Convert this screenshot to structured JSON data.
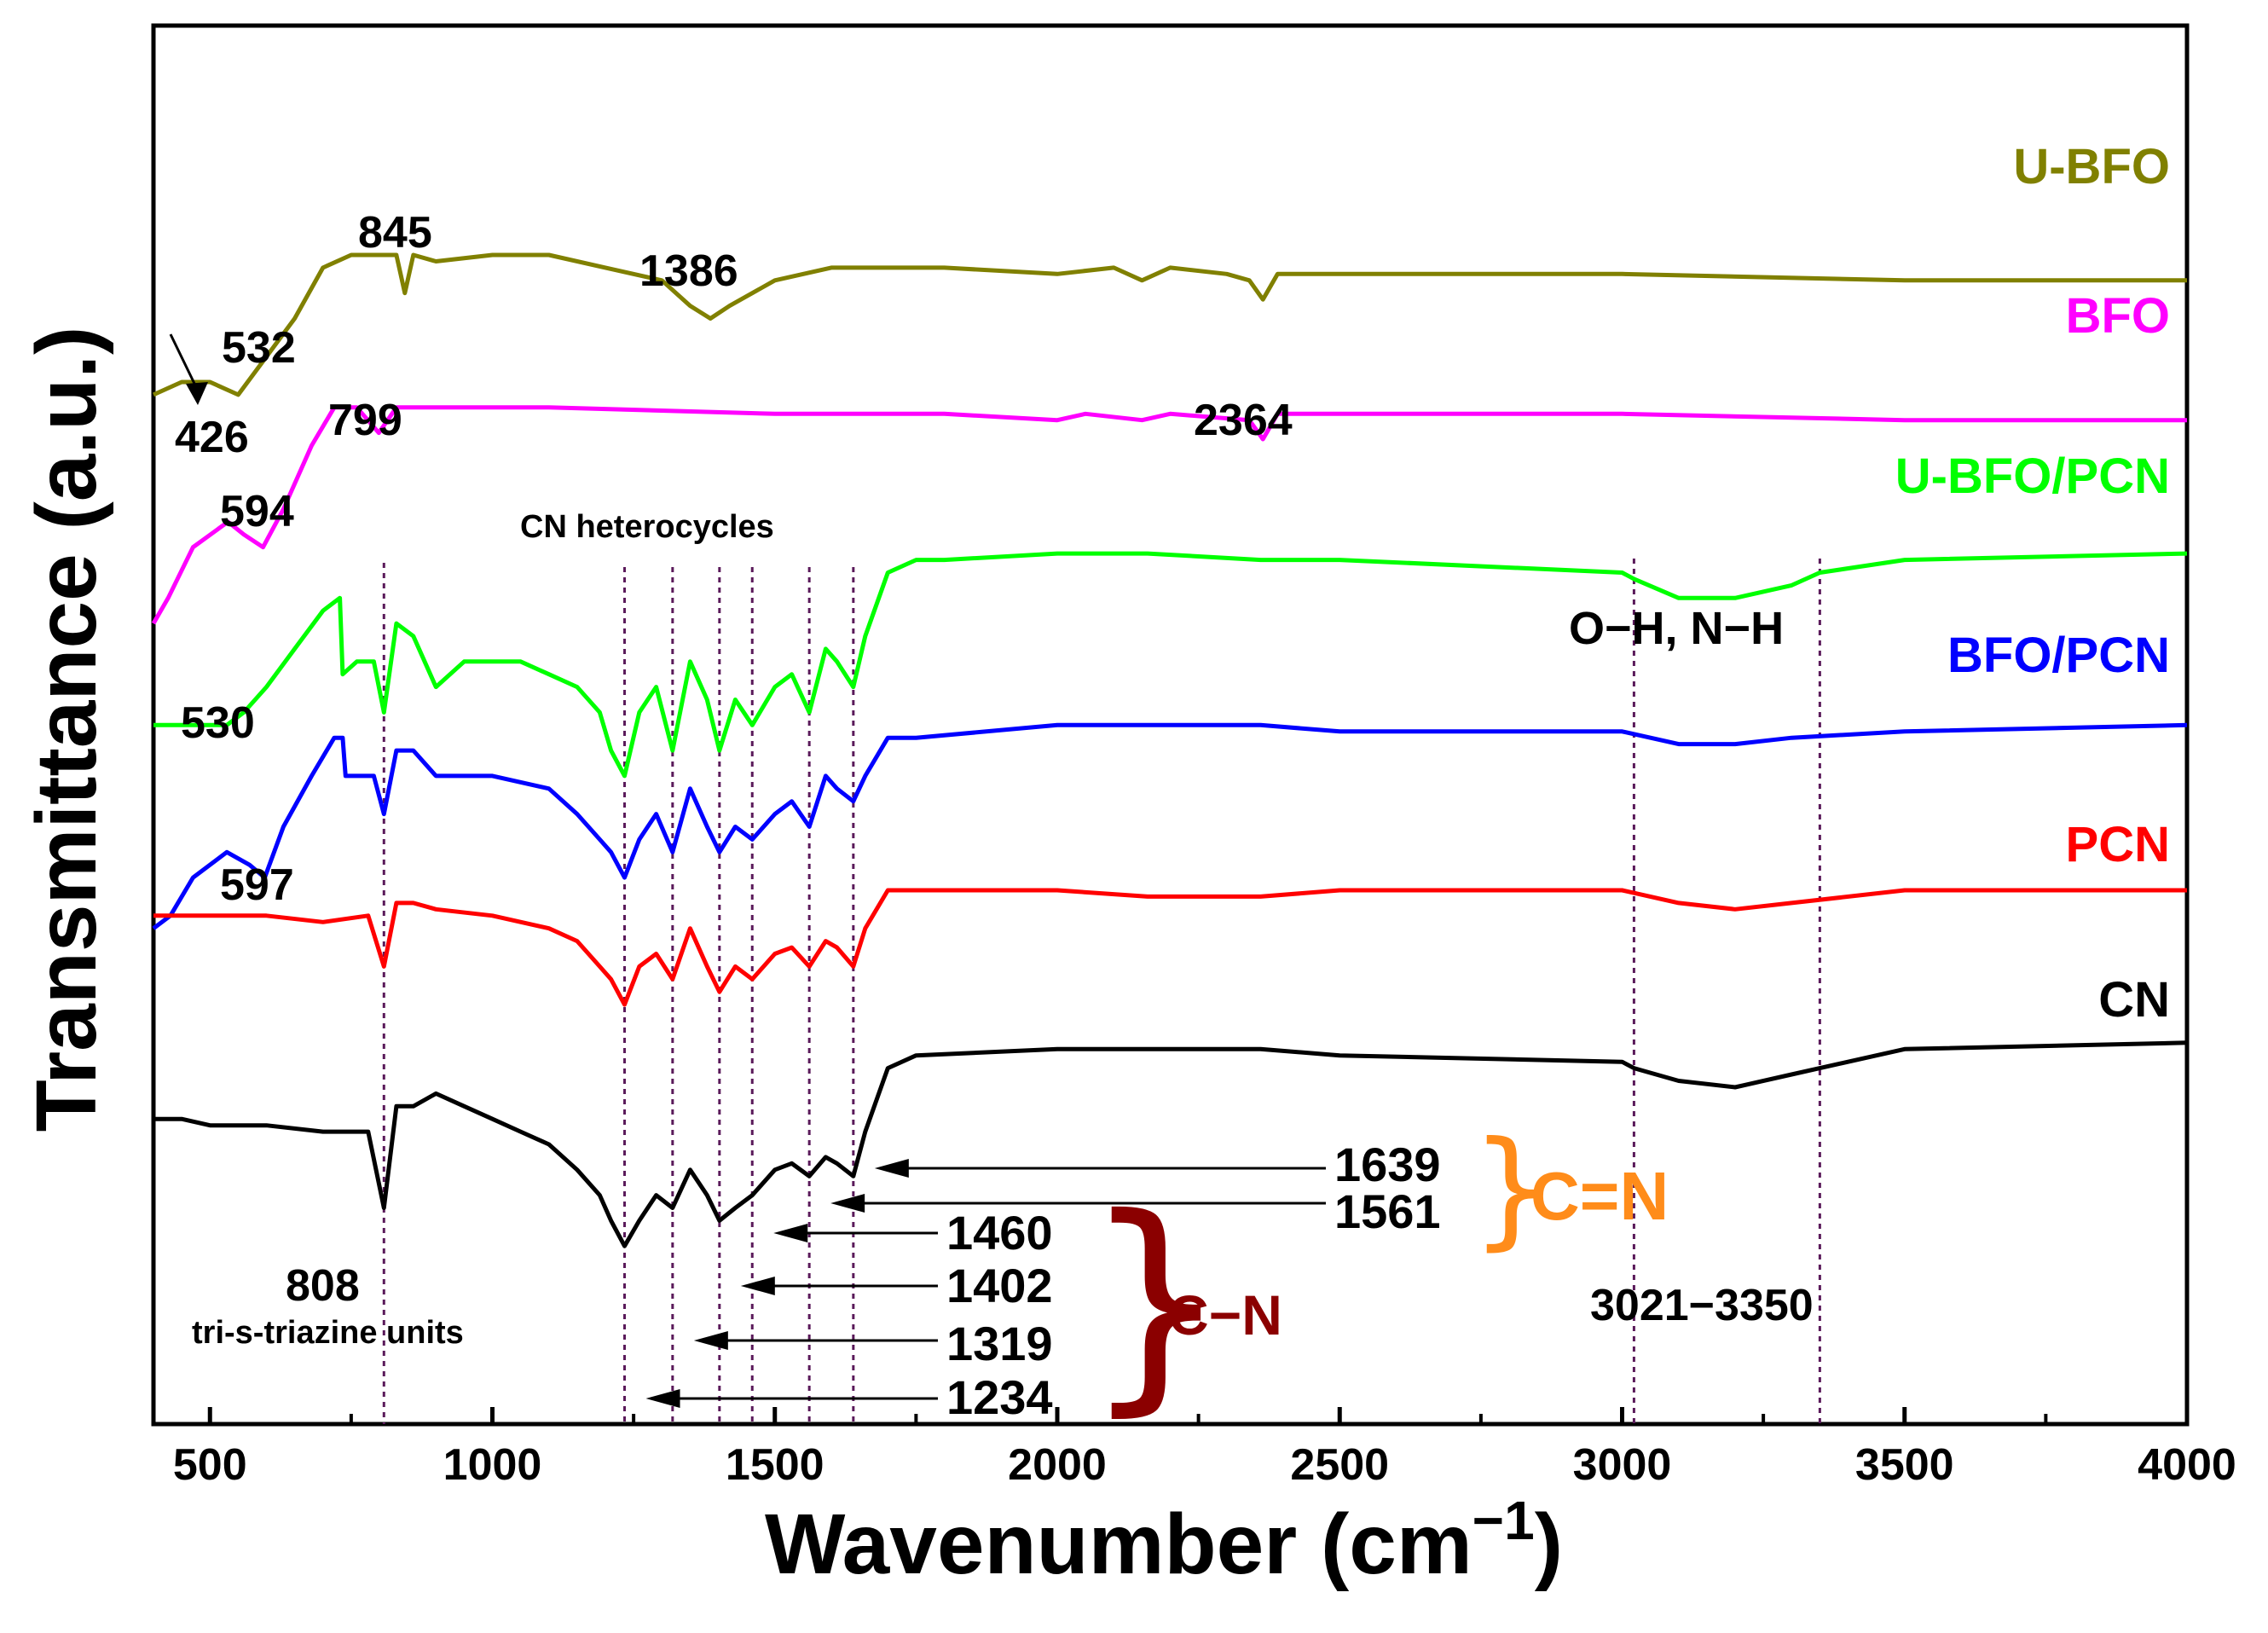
{
  "chart_data": {
    "type": "line",
    "title": "",
    "xlabel": "Wavenumber (cm",
    "xlabel_sup": "−1",
    "xlabel_close": ")",
    "ylabel": "Transmittance (a.u.)",
    "xlim": [
      400,
      4000
    ],
    "ylim": [
      0,
      100
    ],
    "x_ticks": [
      500,
      1000,
      1500,
      2000,
      2500,
      3000,
      3500,
      4000
    ],
    "x_tick_labels": [
      "500",
      "1000",
      "1500",
      "2000",
      "2500",
      "3000",
      "3500",
      "4000"
    ],
    "series": [
      {
        "name": "U-BFO",
        "color": "#808000",
        "label_pos": "right",
        "points": [
          [
            400,
            79
          ],
          [
            450,
            80
          ],
          [
            500,
            80
          ],
          [
            550,
            79
          ],
          [
            600,
            82
          ],
          [
            650,
            85
          ],
          [
            700,
            89
          ],
          [
            750,
            90
          ],
          [
            800,
            90
          ],
          [
            830,
            90
          ],
          [
            845,
            87
          ],
          [
            860,
            90
          ],
          [
            900,
            89.5
          ],
          [
            1000,
            90
          ],
          [
            1100,
            90
          ],
          [
            1200,
            89
          ],
          [
            1300,
            88
          ],
          [
            1350,
            86
          ],
          [
            1386,
            85
          ],
          [
            1420,
            86
          ],
          [
            1500,
            88
          ],
          [
            1600,
            89
          ],
          [
            1800,
            89
          ],
          [
            2000,
            88.5
          ],
          [
            2100,
            89
          ],
          [
            2150,
            88
          ],
          [
            2200,
            89
          ],
          [
            2300,
            88.5
          ],
          [
            2340,
            88
          ],
          [
            2364,
            86.5
          ],
          [
            2390,
            88.5
          ],
          [
            2500,
            88.5
          ],
          [
            3000,
            88.5
          ],
          [
            3500,
            88
          ],
          [
            4000,
            88
          ]
        ]
      },
      {
        "name": "BFO",
        "color": "#ff00ff",
        "label_pos": "right",
        "points": [
          [
            400,
            61
          ],
          [
            426,
            63
          ],
          [
            470,
            67
          ],
          [
            532,
            69
          ],
          [
            560,
            68
          ],
          [
            594,
            67
          ],
          [
            630,
            70
          ],
          [
            680,
            75
          ],
          [
            720,
            78
          ],
          [
            760,
            78
          ],
          [
            799,
            76
          ],
          [
            830,
            78
          ],
          [
            900,
            78
          ],
          [
            1000,
            78
          ],
          [
            1100,
            78
          ],
          [
            1500,
            77.5
          ],
          [
            1800,
            77.5
          ],
          [
            2000,
            77
          ],
          [
            2050,
            77.5
          ],
          [
            2150,
            77
          ],
          [
            2200,
            77.5
          ],
          [
            2340,
            77
          ],
          [
            2364,
            75.5
          ],
          [
            2390,
            77.5
          ],
          [
            2500,
            77.5
          ],
          [
            3000,
            77.5
          ],
          [
            3500,
            77
          ],
          [
            4000,
            77
          ]
        ]
      },
      {
        "name": "U-BFO/PCN",
        "color": "#00ff00",
        "label_pos": "right",
        "points": [
          [
            400,
            53
          ],
          [
            450,
            53
          ],
          [
            530,
            53
          ],
          [
            560,
            54
          ],
          [
            600,
            56
          ],
          [
            650,
            59
          ],
          [
            700,
            62
          ],
          [
            730,
            63
          ],
          [
            735,
            57
          ],
          [
            760,
            58
          ],
          [
            790,
            58
          ],
          [
            808,
            54
          ],
          [
            830,
            61
          ],
          [
            860,
            60
          ],
          [
            900,
            56
          ],
          [
            950,
            58
          ],
          [
            1000,
            58
          ],
          [
            1050,
            58
          ],
          [
            1100,
            57
          ],
          [
            1150,
            56
          ],
          [
            1190,
            54
          ],
          [
            1210,
            51
          ],
          [
            1234,
            49
          ],
          [
            1260,
            54
          ],
          [
            1290,
            56
          ],
          [
            1319,
            51
          ],
          [
            1350,
            58
          ],
          [
            1380,
            55
          ],
          [
            1402,
            51
          ],
          [
            1430,
            55
          ],
          [
            1460,
            53
          ],
          [
            1500,
            56
          ],
          [
            1530,
            57
          ],
          [
            1561,
            54
          ],
          [
            1590,
            59
          ],
          [
            1610,
            58
          ],
          [
            1639,
            56
          ],
          [
            1660,
            60
          ],
          [
            1700,
            65
          ],
          [
            1750,
            66
          ],
          [
            1800,
            66
          ],
          [
            2000,
            66.5
          ],
          [
            2160,
            66.5
          ],
          [
            2360,
            66
          ],
          [
            2500,
            66
          ],
          [
            3000,
            65
          ],
          [
            3021,
            64.5
          ],
          [
            3100,
            63
          ],
          [
            3200,
            63
          ],
          [
            3300,
            64
          ],
          [
            3350,
            65
          ],
          [
            3500,
            66
          ],
          [
            4000,
            66.5
          ]
        ]
      },
      {
        "name": "BFO/PCN",
        "color": "#0000ff",
        "label_pos": "right",
        "points": [
          [
            400,
            37
          ],
          [
            430,
            38
          ],
          [
            470,
            41
          ],
          [
            530,
            43
          ],
          [
            570,
            42
          ],
          [
            597,
            41
          ],
          [
            630,
            45
          ],
          [
            680,
            49
          ],
          [
            720,
            52
          ],
          [
            735,
            52
          ],
          [
            740,
            49
          ],
          [
            770,
            49
          ],
          [
            790,
            49
          ],
          [
            808,
            46
          ],
          [
            830,
            51
          ],
          [
            860,
            51
          ],
          [
            900,
            49
          ],
          [
            1000,
            49
          ],
          [
            1100,
            48
          ],
          [
            1150,
            46
          ],
          [
            1190,
            44
          ],
          [
            1210,
            43
          ],
          [
            1234,
            41
          ],
          [
            1260,
            44
          ],
          [
            1290,
            46
          ],
          [
            1319,
            43
          ],
          [
            1350,
            48
          ],
          [
            1380,
            45
          ],
          [
            1402,
            43
          ],
          [
            1430,
            45
          ],
          [
            1460,
            44
          ],
          [
            1500,
            46
          ],
          [
            1530,
            47
          ],
          [
            1561,
            45
          ],
          [
            1590,
            49
          ],
          [
            1610,
            48
          ],
          [
            1639,
            47
          ],
          [
            1660,
            49
          ],
          [
            1700,
            52
          ],
          [
            1750,
            52
          ],
          [
            2000,
            53
          ],
          [
            2160,
            53
          ],
          [
            2360,
            53
          ],
          [
            2500,
            52.5
          ],
          [
            3000,
            52.5
          ],
          [
            3100,
            51.5
          ],
          [
            3200,
            51.5
          ],
          [
            3300,
            52
          ],
          [
            3500,
            52.5
          ],
          [
            4000,
            53
          ]
        ]
      },
      {
        "name": "PCN",
        "color": "#ff0000",
        "label_pos": "right",
        "points": [
          [
            400,
            38
          ],
          [
            450,
            38
          ],
          [
            500,
            38
          ],
          [
            600,
            38
          ],
          [
            700,
            37.5
          ],
          [
            780,
            38
          ],
          [
            808,
            34
          ],
          [
            830,
            39
          ],
          [
            860,
            39
          ],
          [
            900,
            38.5
          ],
          [
            1000,
            38
          ],
          [
            1100,
            37
          ],
          [
            1150,
            36
          ],
          [
            1190,
            34
          ],
          [
            1210,
            33
          ],
          [
            1234,
            31
          ],
          [
            1260,
            34
          ],
          [
            1290,
            35
          ],
          [
            1319,
            33
          ],
          [
            1350,
            37
          ],
          [
            1380,
            34
          ],
          [
            1402,
            32
          ],
          [
            1430,
            34
          ],
          [
            1460,
            33
          ],
          [
            1500,
            35
          ],
          [
            1530,
            35.5
          ],
          [
            1561,
            34
          ],
          [
            1590,
            36
          ],
          [
            1610,
            35.5
          ],
          [
            1639,
            34
          ],
          [
            1660,
            37
          ],
          [
            1700,
            40
          ],
          [
            1750,
            40
          ],
          [
            2000,
            40
          ],
          [
            2160,
            39.5
          ],
          [
            2360,
            39.5
          ],
          [
            2500,
            40
          ],
          [
            3000,
            40
          ],
          [
            3100,
            39
          ],
          [
            3200,
            38.5
          ],
          [
            3300,
            39
          ],
          [
            3500,
            40
          ],
          [
            4000,
            40
          ]
        ]
      },
      {
        "name": "CN",
        "color": "#000000",
        "label_pos": "right",
        "points": [
          [
            400,
            22
          ],
          [
            450,
            22
          ],
          [
            500,
            21.5
          ],
          [
            600,
            21.5
          ],
          [
            700,
            21
          ],
          [
            780,
            21
          ],
          [
            808,
            15
          ],
          [
            830,
            23
          ],
          [
            860,
            23
          ],
          [
            900,
            24
          ],
          [
            950,
            23
          ],
          [
            1000,
            22
          ],
          [
            1050,
            21
          ],
          [
            1100,
            20
          ],
          [
            1150,
            18
          ],
          [
            1190,
            16
          ],
          [
            1210,
            14
          ],
          [
            1234,
            12
          ],
          [
            1260,
            14
          ],
          [
            1290,
            16
          ],
          [
            1319,
            15
          ],
          [
            1350,
            18
          ],
          [
            1380,
            16
          ],
          [
            1402,
            14
          ],
          [
            1430,
            15
          ],
          [
            1460,
            16
          ],
          [
            1500,
            18
          ],
          [
            1530,
            18.5
          ],
          [
            1561,
            17.5
          ],
          [
            1590,
            19
          ],
          [
            1610,
            18.5
          ],
          [
            1639,
            17.5
          ],
          [
            1660,
            21
          ],
          [
            1700,
            26
          ],
          [
            1750,
            27
          ],
          [
            2000,
            27.5
          ],
          [
            2160,
            27.5
          ],
          [
            2360,
            27.5
          ],
          [
            2500,
            27
          ],
          [
            3000,
            26.5
          ],
          [
            3021,
            26
          ],
          [
            3100,
            25
          ],
          [
            3200,
            24.5
          ],
          [
            3300,
            25.5
          ],
          [
            3350,
            26
          ],
          [
            3500,
            27.5
          ],
          [
            4000,
            28
          ]
        ]
      }
    ],
    "peak_labels": [
      "845",
      "1386",
      "532",
      "426",
      "799",
      "2364",
      "594",
      "530",
      "597",
      "808",
      "1639",
      "1561",
      "1460",
      "1402",
      "1319",
      "1234",
      "3021−3350"
    ],
    "annotations": {
      "cn_heterocycles": "CN heterocycles",
      "oh_nh": "O−H, N−H",
      "tri_s_triazine": "tri-s-triazine units",
      "c_eq_n": "C=N",
      "c_n": "C−N"
    },
    "dashed_lines_x": [
      808,
      1234,
      1319,
      1402,
      1460,
      1561,
      1639,
      3021,
      3350
    ],
    "colors": {
      "c_eq_n": "#ff8c1a",
      "c_n": "#8b0000",
      "dashed": "#5a1a5a"
    }
  }
}
